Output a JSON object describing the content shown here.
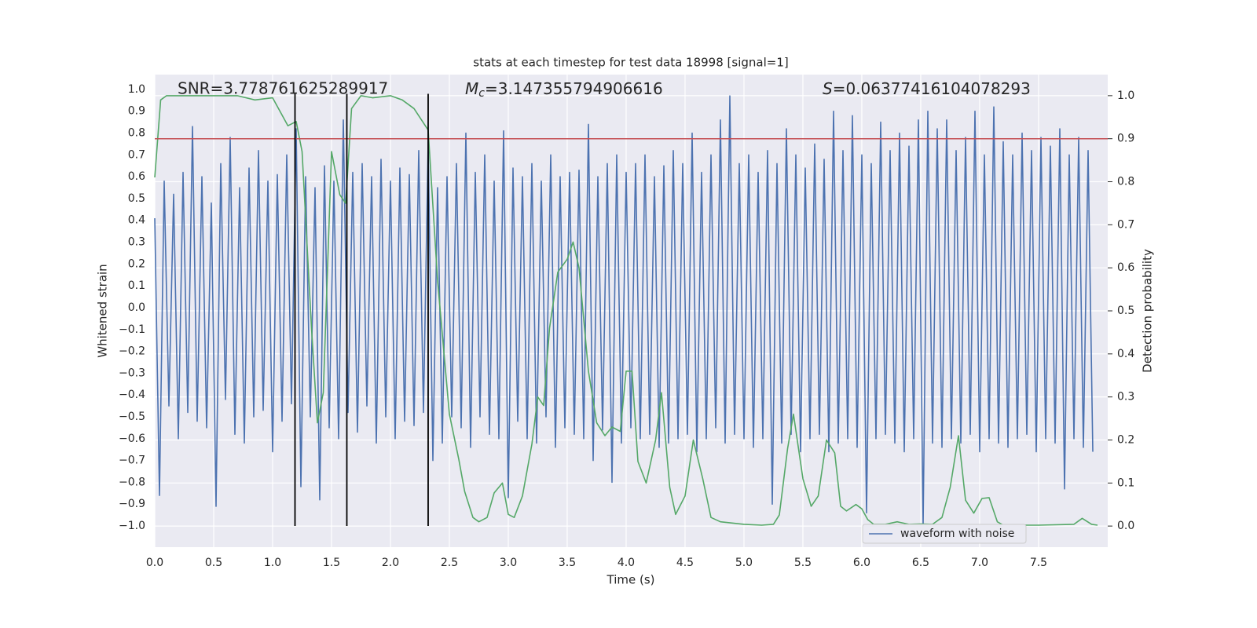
{
  "chart_data": {
    "type": "line",
    "title": "stats at each timestep for test data 18998 [signal=1]",
    "xlabel": "Time (s)",
    "ylabel": "Whitened strain",
    "y2label": "Detection probability",
    "xlim": [
      0,
      8.087
    ],
    "ylim": [
      -1.097,
      1.068
    ],
    "y2lim": [
      -0.049,
      1.049
    ],
    "xticks": [
      {
        "value": 0,
        "label": "0.0"
      },
      {
        "value": 0.5,
        "label": "0.5"
      },
      {
        "value": 1,
        "label": "1.0"
      },
      {
        "value": 1.5,
        "label": "1.5"
      },
      {
        "value": 2,
        "label": "2.0"
      },
      {
        "value": 2.5,
        "label": "2.5"
      },
      {
        "value": 3,
        "label": "3.0"
      },
      {
        "value": 3.5,
        "label": "3.5"
      },
      {
        "value": 4,
        "label": "4.0"
      },
      {
        "value": 4.5,
        "label": "4.5"
      },
      {
        "value": 5,
        "label": "5.0"
      },
      {
        "value": 5.5,
        "label": "5.5"
      },
      {
        "value": 6,
        "label": "6.0"
      },
      {
        "value": 6.5,
        "label": "6.5"
      },
      {
        "value": 7,
        "label": "7.0"
      },
      {
        "value": 7.5,
        "label": "7.5"
      }
    ],
    "yticks": [
      {
        "value": 1,
        "label": "1.0"
      },
      {
        "value": 0.9,
        "label": "0.9"
      },
      {
        "value": 0.8,
        "label": "0.8"
      },
      {
        "value": 0.7,
        "label": "0.7"
      },
      {
        "value": 0.6,
        "label": "0.6"
      },
      {
        "value": 0.5,
        "label": "0.5"
      },
      {
        "value": 0.4,
        "label": "0.4"
      },
      {
        "value": 0.3,
        "label": "0.3"
      },
      {
        "value": 0.2,
        "label": "0.2"
      },
      {
        "value": 0.1,
        "label": "0.1"
      },
      {
        "value": 0,
        "label": "0.0"
      },
      {
        "value": -0.1,
        "label": "−0.1"
      },
      {
        "value": -0.2,
        "label": "−0.2"
      },
      {
        "value": -0.3,
        "label": "−0.3"
      },
      {
        "value": -0.4,
        "label": "−0.4"
      },
      {
        "value": -0.5,
        "label": "−0.5"
      },
      {
        "value": -0.6,
        "label": "−0.6"
      },
      {
        "value": -0.7,
        "label": "−0.7"
      },
      {
        "value": -0.8,
        "label": "−0.8"
      },
      {
        "value": -0.9,
        "label": "−0.9"
      },
      {
        "value": -1,
        "label": "−1.0"
      }
    ],
    "y2ticks": [
      {
        "value": 0,
        "label": "0.0"
      },
      {
        "value": 0.1,
        "label": "0.1"
      },
      {
        "value": 0.2,
        "label": "0.2"
      },
      {
        "value": 0.3,
        "label": "0.3"
      },
      {
        "value": 0.4,
        "label": "0.4"
      },
      {
        "value": 0.5,
        "label": "0.5"
      },
      {
        "value": 0.6,
        "label": "0.6"
      },
      {
        "value": 0.7,
        "label": "0.7"
      },
      {
        "value": 0.8,
        "label": "0.8"
      },
      {
        "value": 0.9,
        "label": "0.9"
      },
      {
        "value": 1,
        "label": "1.0"
      }
    ],
    "grid": {
      "x": true,
      "y": false,
      "y2": true
    },
    "legend": "lower right",
    "series": [
      {
        "name": "waveform with noise",
        "color": "#4c72b0",
        "x": [
          0,
          0.04,
          0.08,
          0.12,
          0.16,
          0.2,
          0.24,
          0.28,
          0.32,
          0.36,
          0.4,
          0.44,
          0.48,
          0.52,
          0.56,
          0.6,
          0.64,
          0.68,
          0.72,
          0.76,
          0.8,
          0.84,
          0.88,
          0.92,
          0.96,
          1,
          1.04,
          1.08,
          1.12,
          1.16,
          1.2,
          1.24,
          1.28,
          1.32,
          1.36,
          1.4,
          1.44,
          1.48,
          1.52,
          1.56,
          1.6,
          1.64,
          1.68,
          1.72,
          1.76,
          1.8,
          1.84,
          1.88,
          1.92,
          1.96,
          2,
          2.04,
          2.08,
          2.12,
          2.16,
          2.2,
          2.24,
          2.28,
          2.32,
          2.36,
          2.4,
          2.44,
          2.48,
          2.52,
          2.56,
          2.6,
          2.64,
          2.68,
          2.72,
          2.76,
          2.8,
          2.84,
          2.88,
          2.92,
          2.96,
          3,
          3.04,
          3.08,
          3.12,
          3.16,
          3.2,
          3.24,
          3.28,
          3.32,
          3.36,
          3.4,
          3.44,
          3.48,
          3.52,
          3.56,
          3.6,
          3.64,
          3.68,
          3.72,
          3.76,
          3.8,
          3.84,
          3.88,
          3.92,
          3.96,
          4,
          4.04,
          4.08,
          4.12,
          4.16,
          4.2,
          4.24,
          4.28,
          4.32,
          4.36,
          4.4,
          4.44,
          4.48,
          4.52,
          4.56,
          4.6,
          4.64,
          4.68,
          4.72,
          4.76,
          4.8,
          4.84,
          4.88,
          4.92,
          4.96,
          5,
          5.04,
          5.08,
          5.12,
          5.16,
          5.2,
          5.24,
          5.28,
          5.32,
          5.36,
          5.4,
          5.44,
          5.48,
          5.52,
          5.56,
          5.6,
          5.64,
          5.68,
          5.72,
          5.76,
          5.8,
          5.84,
          5.88,
          5.92,
          5.96,
          6,
          6.04,
          6.08,
          6.12,
          6.16,
          6.2,
          6.24,
          6.28,
          6.32,
          6.36,
          6.4,
          6.44,
          6.48,
          6.52,
          6.56,
          6.6,
          6.64,
          6.68,
          6.72,
          6.76,
          6.8,
          6.84,
          6.88,
          6.92,
          6.96,
          7,
          7.04,
          7.08,
          7.12,
          7.16,
          7.2,
          7.24,
          7.28,
          7.32,
          7.36,
          7.4,
          7.44,
          7.48,
          7.52,
          7.56,
          7.6,
          7.64,
          7.68,
          7.72,
          7.76,
          7.8,
          7.84,
          7.88,
          7.92,
          7.96
        ],
        "values": [
          0.41,
          -0.86,
          0.58,
          -0.45,
          0.52,
          -0.6,
          0.62,
          -0.48,
          0.83,
          -0.52,
          0.6,
          -0.55,
          0.48,
          -0.91,
          0.66,
          -0.42,
          0.78,
          -0.58,
          0.55,
          -0.62,
          0.64,
          -0.5,
          0.72,
          -0.47,
          0.58,
          -0.66,
          0.61,
          -0.52,
          0.7,
          -0.44,
          0.82,
          -0.82,
          0.6,
          -0.5,
          0.55,
          -0.88,
          0.65,
          -0.55,
          0.58,
          -0.6,
          0.86,
          -0.48,
          0.62,
          -0.57,
          0.66,
          -0.45,
          0.6,
          -0.62,
          0.68,
          -0.5,
          0.58,
          -0.6,
          0.64,
          -0.52,
          0.61,
          -0.54,
          0.72,
          -0.48,
          0.76,
          -0.7,
          0.55,
          -0.62,
          0.6,
          -0.5,
          0.66,
          -0.55,
          0.8,
          -0.64,
          0.62,
          -0.5,
          0.7,
          -0.58,
          0.58,
          -0.6,
          0.81,
          -0.87,
          0.64,
          -0.52,
          0.6,
          -0.6,
          0.66,
          -0.62,
          0.58,
          -0.5,
          0.7,
          -0.64,
          0.6,
          -0.55,
          0.62,
          -0.58,
          0.63,
          -0.6,
          0.84,
          -0.7,
          0.6,
          -0.56,
          0.66,
          -0.8,
          0.7,
          -0.62,
          0.62,
          -0.55,
          0.66,
          -0.6,
          0.7,
          -0.58,
          0.6,
          -0.64,
          0.65,
          -0.62,
          0.72,
          -0.6,
          0.66,
          -0.58,
          0.8,
          -0.66,
          0.62,
          -0.6,
          0.7,
          -0.55,
          0.86,
          -0.62,
          0.97,
          -0.58,
          0.66,
          -0.6,
          0.7,
          -0.64,
          0.62,
          -0.6,
          0.72,
          -0.9,
          0.66,
          -0.62,
          0.82,
          -0.58,
          0.7,
          -0.66,
          0.64,
          -0.6,
          0.75,
          -0.58,
          0.68,
          -0.66,
          0.9,
          -0.62,
          0.72,
          -0.6,
          0.88,
          -0.64,
          0.7,
          -0.94,
          0.66,
          -0.6,
          0.85,
          -0.58,
          0.72,
          -0.62,
          0.8,
          -0.66,
          0.74,
          -0.6,
          0.86,
          -1.0,
          0.9,
          -0.62,
          0.82,
          -0.64,
          0.86,
          -0.6,
          0.72,
          -0.62,
          0.78,
          -0.58,
          0.9,
          -0.66,
          0.7,
          -0.6,
          0.92,
          -0.62,
          0.76,
          -0.64,
          0.7,
          -0.6,
          0.8,
          -0.58,
          0.72,
          -0.66,
          0.78,
          -0.6,
          0.74,
          -0.62,
          0.82,
          -0.83,
          0.7,
          -0.6,
          0.78,
          -0.64,
          0.72,
          -0.66
        ]
      },
      {
        "color": "#55a868",
        "axis": "y2",
        "x": [
          0,
          0.05,
          0.1,
          0.5,
          0.7,
          0.85,
          1,
          1.13,
          1.2,
          1.25,
          1.33,
          1.38,
          1.43,
          1.5,
          1.57,
          1.62,
          1.67,
          1.75,
          1.85,
          2,
          2.1,
          2.2,
          2.32,
          2.4,
          2.5,
          2.58,
          2.63,
          2.7,
          2.75,
          2.82,
          2.88,
          2.95,
          3,
          3.05,
          3.12,
          3.2,
          3.25,
          3.3,
          3.35,
          3.42,
          3.5,
          3.55,
          3.6,
          3.68,
          3.75,
          3.82,
          3.88,
          3.95,
          4,
          4.05,
          4.1,
          4.17,
          4.25,
          4.3,
          4.37,
          4.42,
          4.5,
          4.57,
          4.65,
          4.72,
          4.8,
          5,
          5.15,
          5.25,
          5.3,
          5.37,
          5.42,
          5.5,
          5.57,
          5.63,
          5.7,
          5.77,
          5.82,
          5.87,
          5.95,
          6,
          6.05,
          6.1,
          6.2,
          6.3,
          6.4,
          6.5,
          6.6,
          6.68,
          6.75,
          6.82,
          6.88,
          6.95,
          7.02,
          7.08,
          7.15,
          7.2,
          7.5,
          7.8,
          7.87,
          7.95,
          8
        ],
        "values": [
          0.81,
          0.99,
          1,
          1,
          1,
          0.99,
          0.995,
          0.93,
          0.94,
          0.87,
          0.46,
          0.24,
          0.31,
          0.87,
          0.77,
          0.75,
          0.97,
          1,
          0.995,
          1,
          0.99,
          0.97,
          0.92,
          0.57,
          0.26,
          0.155,
          0.08,
          0.02,
          0.01,
          0.02,
          0.077,
          0.1,
          0.027,
          0.02,
          0.07,
          0.19,
          0.3,
          0.28,
          0.46,
          0.59,
          0.62,
          0.66,
          0.6,
          0.36,
          0.24,
          0.21,
          0.23,
          0.22,
          0.36,
          0.36,
          0.15,
          0.1,
          0.2,
          0.31,
          0.09,
          0.027,
          0.07,
          0.2,
          0.11,
          0.02,
          0.01,
          0.004,
          0.002,
          0.004,
          0.026,
          0.18,
          0.26,
          0.11,
          0.046,
          0.07,
          0.2,
          0.17,
          0.046,
          0.035,
          0.05,
          0.04,
          0.015,
          0.004,
          0.004,
          0.01,
          0.004,
          0.005,
          0.004,
          0.02,
          0.09,
          0.21,
          0.06,
          0.03,
          0.064,
          0.066,
          0.01,
          0.002,
          0.002,
          0.004,
          0.018,
          0.004,
          0.002
        ]
      }
    ],
    "hline": {
      "value": 0.9,
      "axis": "y2",
      "color": "#c44e52"
    },
    "vlines": {
      "x": [
        1.19,
        1.63,
        2.32
      ],
      "ymin": -1.0,
      "ymax": 0.98,
      "color": "#000000"
    },
    "annotations": {
      "snr": "SNR=3.778761625289917",
      "mc": {
        "symbol": "M",
        "subscript": "c",
        "text": "=3.147355794906616"
      },
      "s": {
        "symbol": "S",
        "text": "=0.06377416104078293"
      }
    }
  }
}
